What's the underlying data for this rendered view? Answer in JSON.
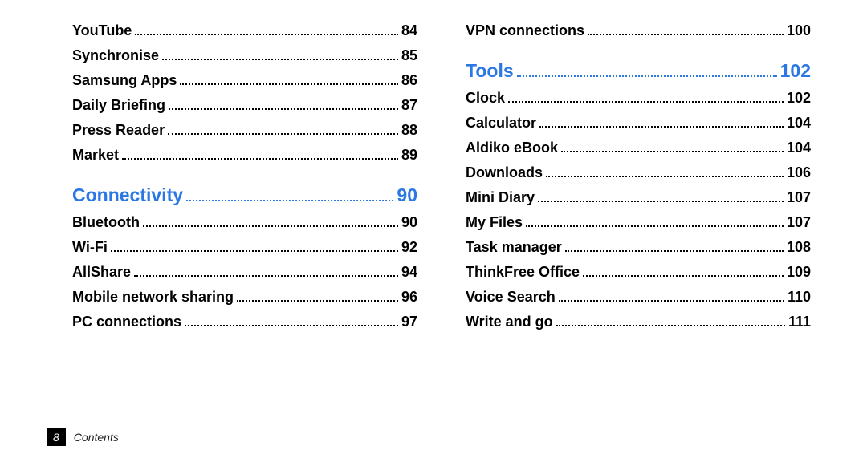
{
  "colors": {
    "section": "#2b78e4",
    "text": "#000000",
    "footer_bg": "#000000",
    "footer_text": "#ffffff",
    "footer_title": "#222222"
  },
  "left_items": [
    {
      "kind": "entry",
      "label": "YouTube",
      "page": "84"
    },
    {
      "kind": "entry",
      "label": "Synchronise",
      "page": "85"
    },
    {
      "kind": "entry",
      "label": "Samsung Apps",
      "page": "86"
    },
    {
      "kind": "entry",
      "label": "Daily Briefing",
      "page": "87"
    },
    {
      "kind": "entry",
      "label": "Press Reader",
      "page": "88"
    },
    {
      "kind": "entry",
      "label": "Market",
      "page": "89"
    },
    {
      "kind": "section",
      "label": "Connectivity",
      "page": "90"
    },
    {
      "kind": "entry",
      "label": "Bluetooth",
      "page": "90"
    },
    {
      "kind": "entry",
      "label": "Wi-Fi",
      "page": "92"
    },
    {
      "kind": "entry",
      "label": "AllShare",
      "page": "94"
    },
    {
      "kind": "entry",
      "label": "Mobile network sharing",
      "page": "96"
    },
    {
      "kind": "entry",
      "label": "PC connections",
      "page": "97"
    }
  ],
  "right_items": [
    {
      "kind": "entry",
      "label": "VPN connections",
      "page": "100"
    },
    {
      "kind": "section",
      "label": "Tools",
      "page": "102"
    },
    {
      "kind": "entry",
      "label": "Clock",
      "page": "102"
    },
    {
      "kind": "entry",
      "label": "Calculator",
      "page": "104"
    },
    {
      "kind": "entry",
      "label": "Aldiko eBook",
      "page": "104"
    },
    {
      "kind": "entry",
      "label": "Downloads",
      "page": "106"
    },
    {
      "kind": "entry",
      "label": "Mini Diary",
      "page": "107"
    },
    {
      "kind": "entry",
      "label": "My Files",
      "page": "107"
    },
    {
      "kind": "entry",
      "label": "Task manager",
      "page": "108"
    },
    {
      "kind": "entry",
      "label": "ThinkFree Office",
      "page": "109"
    },
    {
      "kind": "entry",
      "label": "Voice Search",
      "page": "110"
    },
    {
      "kind": "entry",
      "label": "Write and go",
      "page": "111"
    }
  ],
  "footer": {
    "page_number": "8",
    "title": "Contents"
  }
}
